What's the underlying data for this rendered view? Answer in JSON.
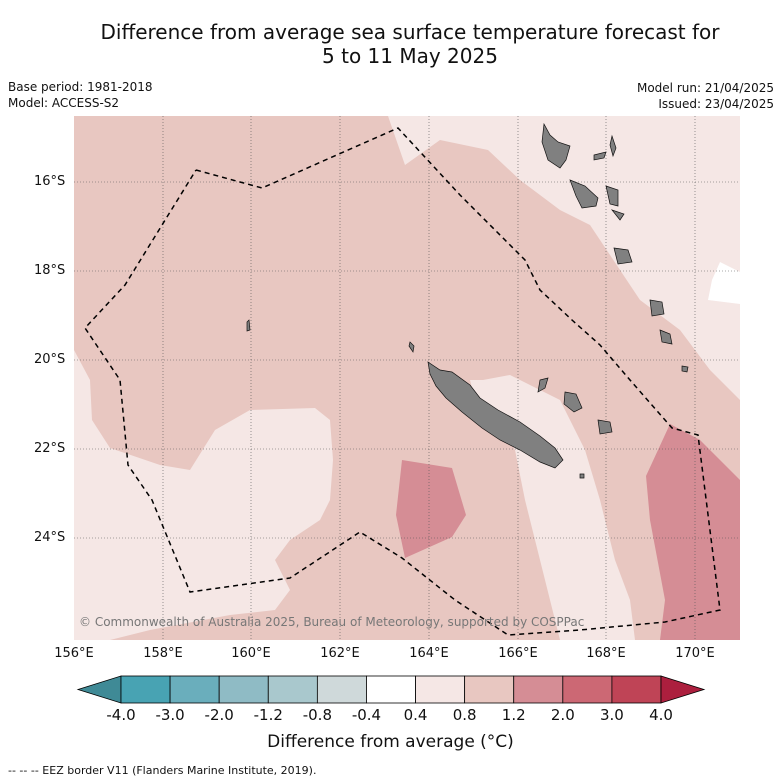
{
  "title_line1": "Difference from average sea surface temperature forecast for",
  "title_line2": "5 to 11 May 2025",
  "base_period": "Base period: 1981-2018",
  "model": "Model: ACCESS-S2",
  "model_run": "Model run: 21/04/2025",
  "issued": "Issued: 23/04/2025",
  "copyright": "© Commonwealth of Australia 2025, Bureau of Meteorology, supported by COSPPac",
  "lat_ticks": [
    "16°S",
    "18°S",
    "20°S",
    "22°S",
    "24°S"
  ],
  "lon_ticks": [
    "156°E",
    "158°E",
    "160°E",
    "162°E",
    "164°E",
    "166°E",
    "168°E",
    "170°E"
  ],
  "colorbar": {
    "tick_labels": [
      "-4.0",
      "-3.0",
      "-2.0",
      "-1.2",
      "-0.8",
      "-0.4",
      "0.4",
      "0.8",
      "1.2",
      "2.0",
      "3.0",
      "4.0"
    ],
    "colors": [
      "#3f8a96",
      "#48a3b3",
      "#6aaebc",
      "#8fbbc5",
      "#a9c8cd",
      "#cfd9da",
      "#ffffff",
      "#f5e7e5",
      "#e8c7c1",
      "#d58d95",
      "#cc6874",
      "#bf4456",
      "#ac1f3e"
    ],
    "label": "Difference from average (°C)"
  },
  "eez_note": "--  --  -- EEZ border V11 (Flanders Marine Institute, 2019).",
  "colors": {
    "land": "#808080",
    "very_light_pink": "#f5e7e5",
    "light_pink": "#e8c7c1",
    "medium_pink": "#d58d95"
  }
}
